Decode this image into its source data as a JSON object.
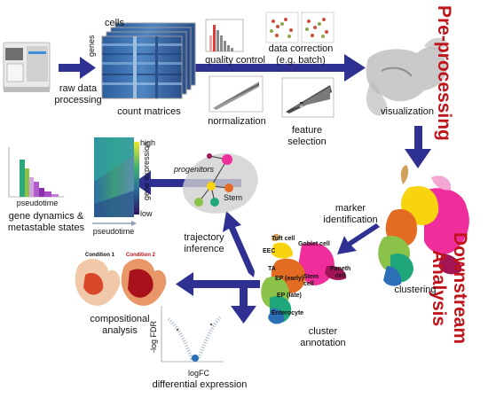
{
  "sections": {
    "preprocessing": "Pre-processing",
    "downstream_line1": "Downstream",
    "downstream_line2": "Analysis"
  },
  "steps": {
    "raw_data_l1": "raw data",
    "raw_data_l2": "processing",
    "count_matrices": "count matrices",
    "cells": "cells",
    "genes": "genes",
    "quality_control": "quality control",
    "data_correction_l1": "data correction",
    "data_correction_l2": "(e.g. batch)",
    "normalization": "normalization",
    "feature_selection_l1": "feature",
    "feature_selection_l2": "selection",
    "visualization": "visualization",
    "clustering": "clustering",
    "marker_l1": "marker",
    "marker_l2": "identification",
    "cluster_annotation_l1": "cluster",
    "cluster_annotation_l2": "annotation",
    "trajectory_l1": "trajectory",
    "trajectory_l2": "inference",
    "gene_dynamics_l1": "gene dynamics &",
    "gene_dynamics_l2": "metastable states",
    "compositional_l1": "compositional",
    "compositional_l2": "analysis",
    "differential_expression": "differential expression"
  },
  "annotation_labels": {
    "tuft": "Tuft cell",
    "eec": "EEC",
    "goblet": "Goblet cell",
    "ta": "TA",
    "ep_early": "EP (early)",
    "stem": "Stem",
    "stem_cell_l2": "cell",
    "paneth_l1": "Paneth",
    "paneth_l2": "cell",
    "ep_late": "EP (late)",
    "enterocyte": "Enterocyte"
  },
  "trajectory_labels": {
    "progenitors": "progenitors",
    "stem": "Stem"
  },
  "heatmap_labels": {
    "high": "high",
    "low": "low",
    "gene_expression": "gene expression",
    "pseudotime": "pseudotime"
  },
  "gene_dynamics_xlabel": "pseudotime",
  "composition_labels": {
    "condition1": "Condition 1",
    "condition2": "Condition 2"
  },
  "volcano_labels": {
    "xlabel": "logFC",
    "ylabel": "-log FDR"
  },
  "colors": {
    "arrow": "#2e3192",
    "section_title": "#c0141b",
    "cond2_title": "#c0141b"
  }
}
